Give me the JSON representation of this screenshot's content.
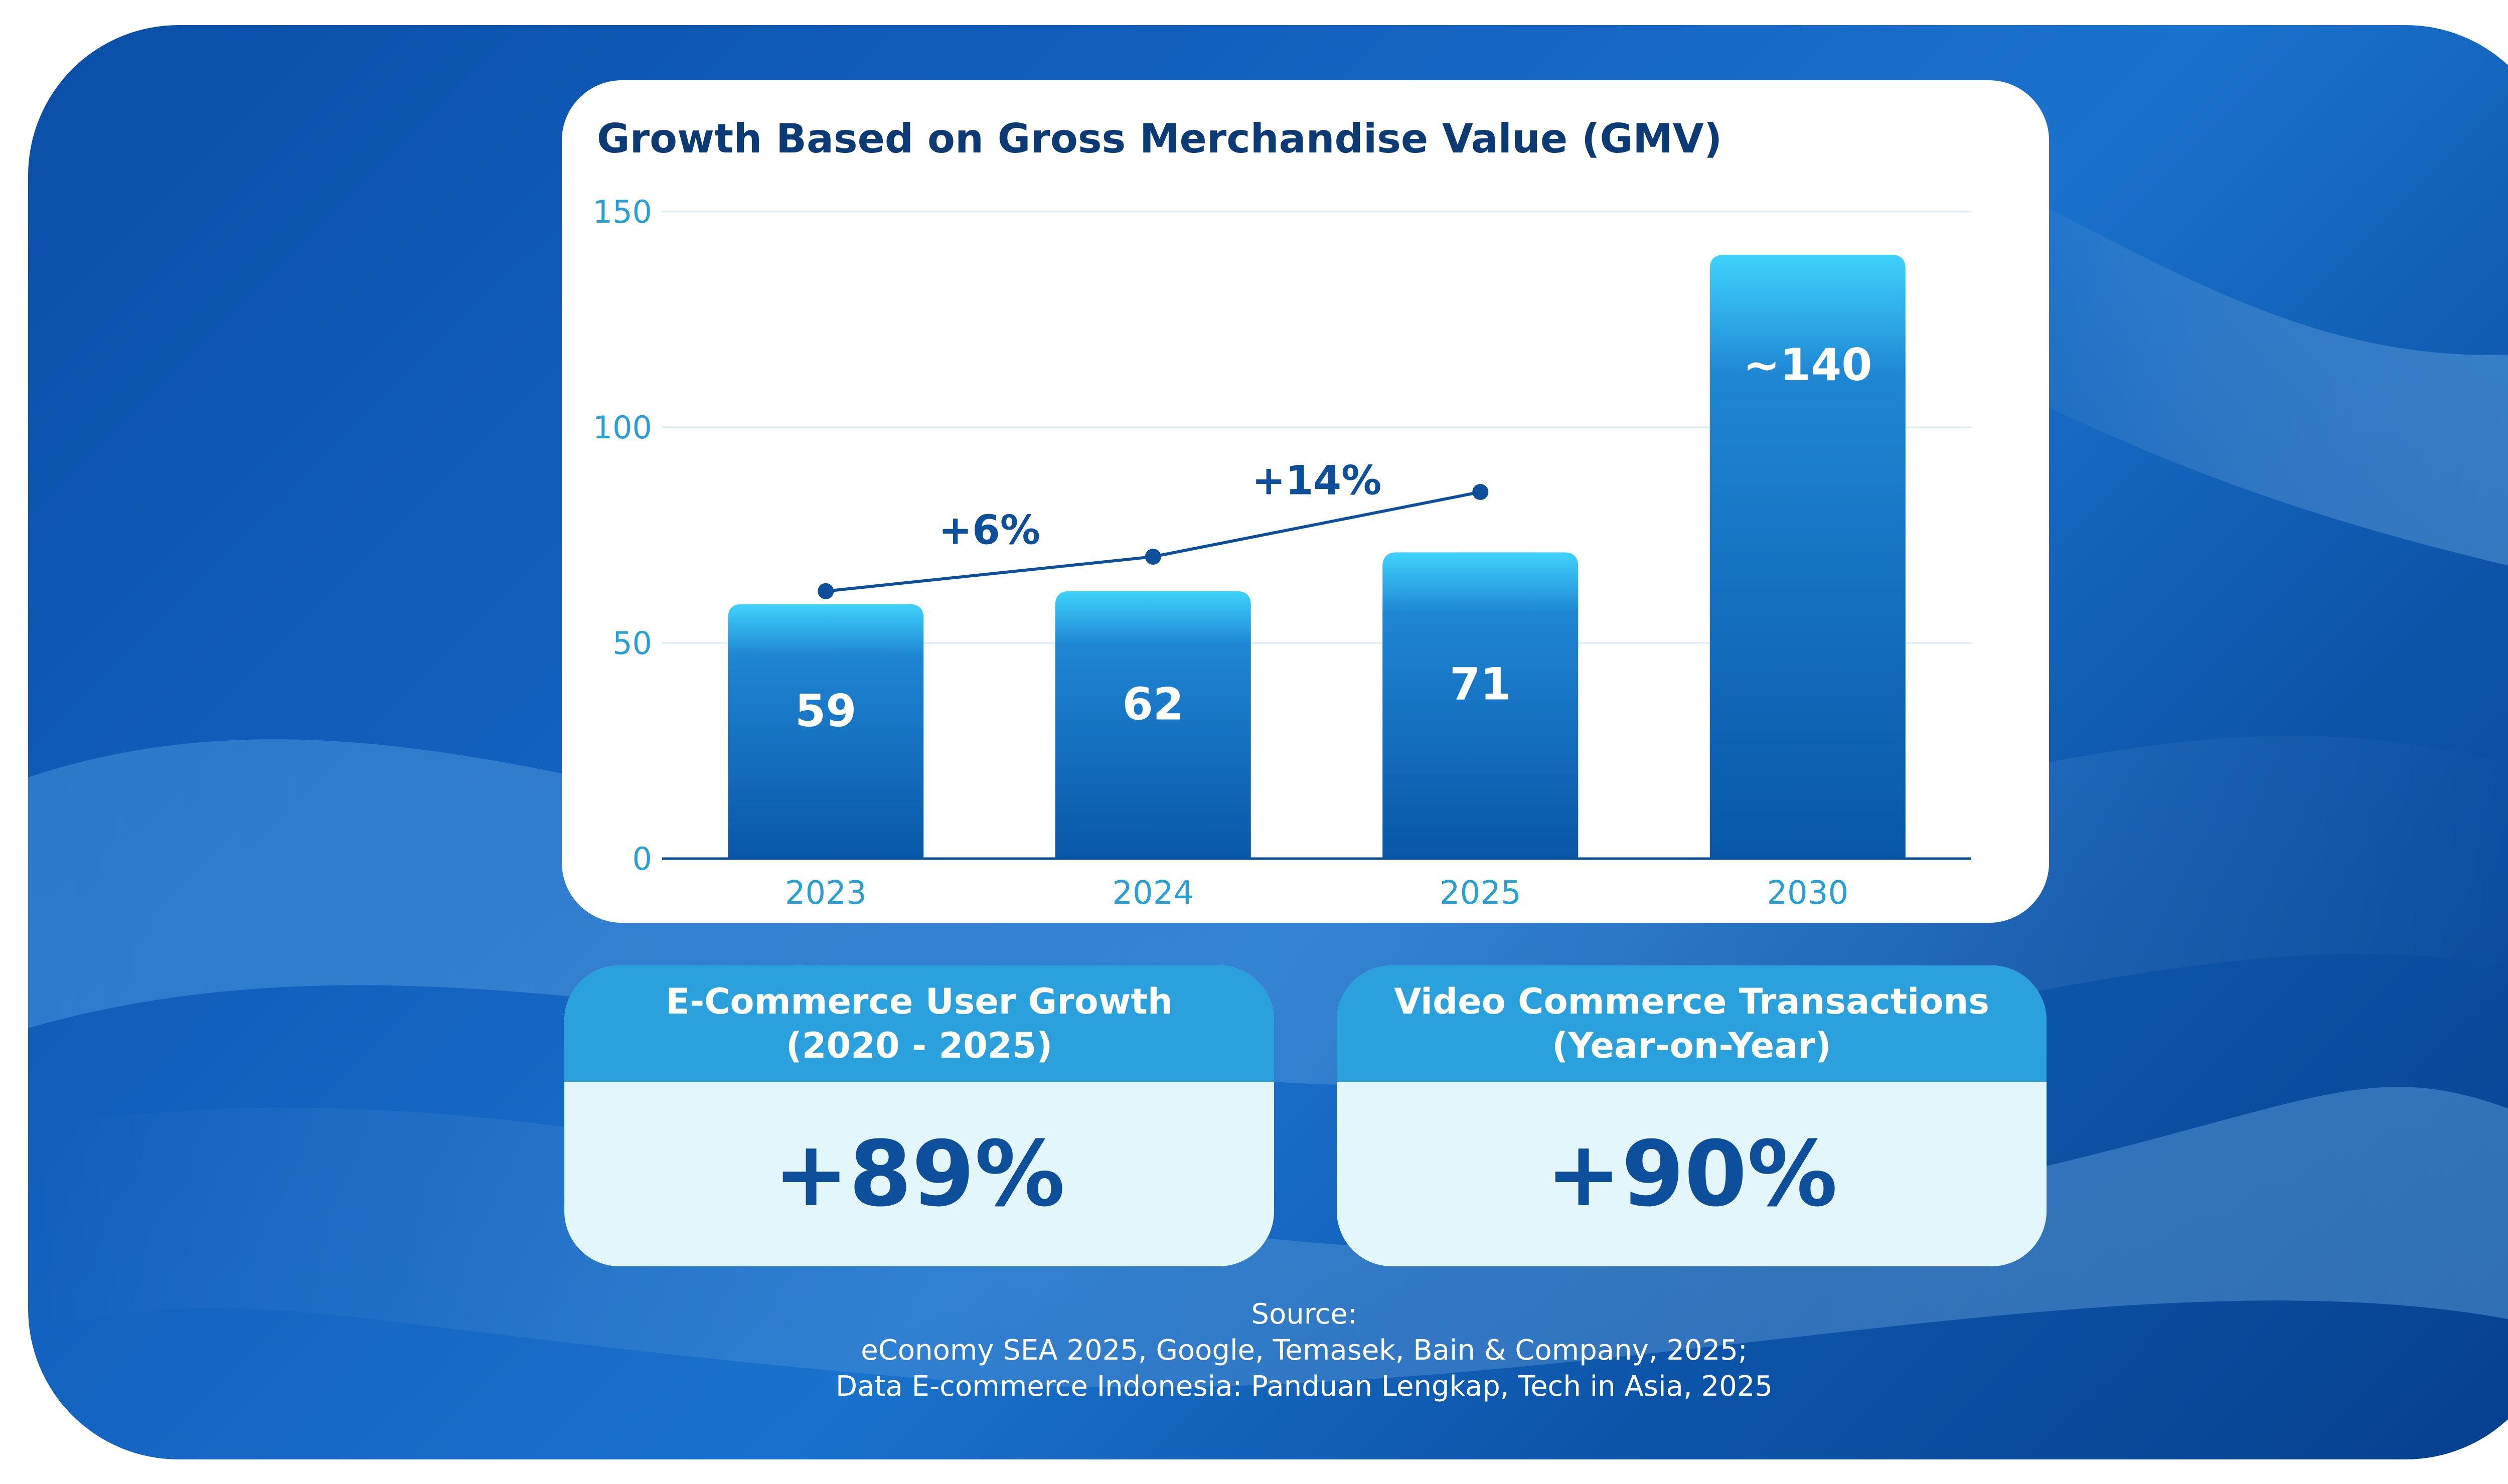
{
  "colors": {
    "accent": "#2aa0dd",
    "bar_top": "#3fd2fb",
    "bar_bottom": "#0957a8",
    "title": "#0b3a74",
    "axis_text": "#2a9fd6",
    "stat_value": "#0d4f9a",
    "stat_body": "#e2f6fc"
  },
  "chart_data": {
    "type": "bar",
    "title": "Growth Based on Gross Merchandise Value (GMV)",
    "categories": [
      "2023",
      "2024",
      "2025",
      "2030"
    ],
    "values": [
      59,
      62,
      71,
      140
    ],
    "value_labels": [
      "59",
      "62",
      "71",
      "~140"
    ],
    "ylim": [
      0,
      150
    ],
    "yticks": [
      0,
      50,
      100,
      150
    ],
    "xlabel": "",
    "ylabel": "",
    "grid": true,
    "trend_line": {
      "categories": [
        "2023",
        "2024",
        "2025"
      ],
      "values": [
        62,
        70,
        85
      ],
      "labels": [
        {
          "text": "+6%",
          "between": [
            "2023",
            "2024"
          ]
        },
        {
          "text": "+14%",
          "between": [
            "2024",
            "2025"
          ]
        }
      ]
    }
  },
  "stats": [
    {
      "title": "E-Commerce User Growth\n(2020 - 2025)",
      "value": "+89%"
    },
    {
      "title": "Video Commerce Transactions\n(Year-on-Year)",
      "value": "+90%"
    }
  ],
  "source": {
    "heading": "Source:",
    "lines": [
      "eConomy SEA 2025, Google, Temasek, Bain & Company, 2025;",
      "Data E-commerce Indonesia: Panduan Lengkap, Tech in Asia, 2025"
    ]
  }
}
